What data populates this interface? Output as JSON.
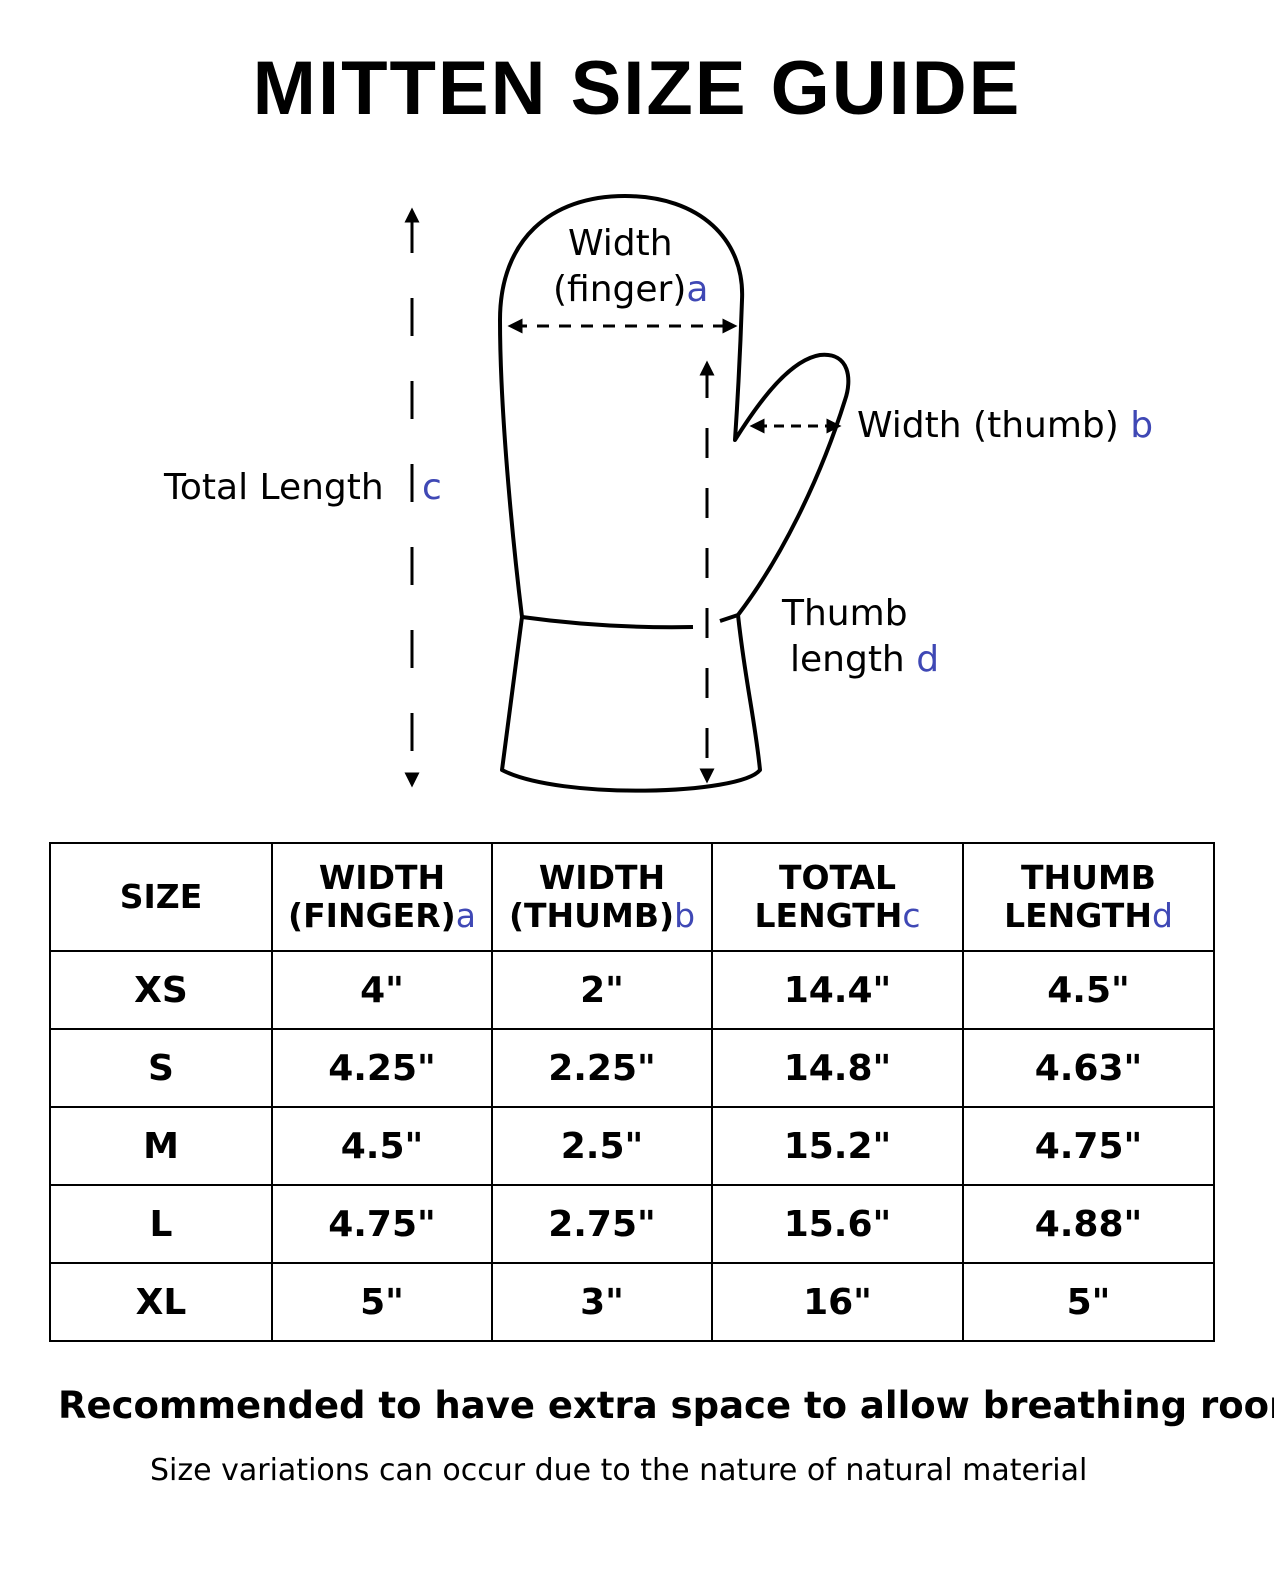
{
  "title": "MITTEN SIZE GUIDE",
  "diagram": {
    "width_finger": {
      "text1": "Width",
      "text2": "(finger)",
      "letter": "a"
    },
    "width_thumb": {
      "text": "Width (thumb)",
      "letter": "b"
    },
    "total_length": {
      "text": "Total Length",
      "letter": "c"
    },
    "thumb_length": {
      "text1": "Thumb",
      "text2": "length",
      "letter": "d"
    }
  },
  "colors": {
    "letter": "#3f48b5",
    "ink": "#000000"
  },
  "table": {
    "headers": [
      {
        "line1": "SIZE",
        "line2": "",
        "letter": ""
      },
      {
        "line1": "WIDTH",
        "line2": "(FINGER)",
        "letter": "a"
      },
      {
        "line1": "WIDTH",
        "line2": "(THUMB)",
        "letter": "b"
      },
      {
        "line1": "TOTAL",
        "line2": "LENGTH",
        "letter": "c"
      },
      {
        "line1": "THUMB",
        "line2": "LENGTH",
        "letter": "d"
      }
    ],
    "rows": [
      [
        "XS",
        "4\"",
        "2\"",
        "14.4\"",
        "4.5\""
      ],
      [
        "S",
        "4.25\"",
        "2.25\"",
        "14.8\"",
        "4.63\""
      ],
      [
        "M",
        "4.5\"",
        "2.5\"",
        "15.2\"",
        "4.75\""
      ],
      [
        "L",
        "4.75\"",
        "2.75\"",
        "15.6\"",
        "4.88\""
      ],
      [
        "XL",
        "5\"",
        "3\"",
        "16\"",
        "5\""
      ]
    ]
  },
  "note": "Recommended to have extra space to allow breathing room",
  "subnote": "Size variations can occur due to the nature of natural material"
}
